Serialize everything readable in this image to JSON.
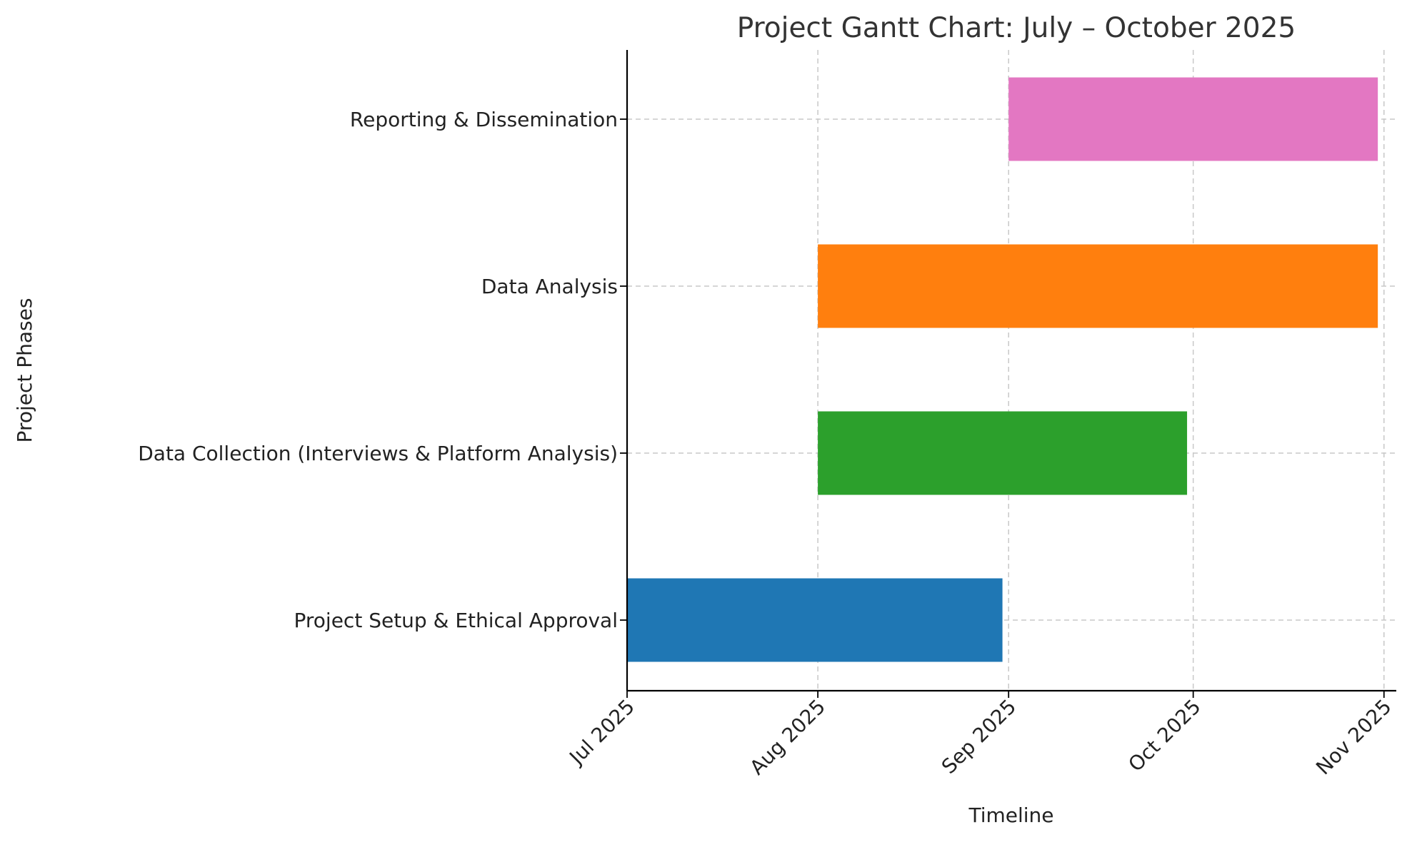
{
  "chart_data": {
    "type": "gantt",
    "title": "Project Gantt Chart: July – October 2025",
    "xlabel": "Timeline",
    "ylabel": "Project Phases",
    "x_range": [
      "2025-07-01",
      "2025-11-03"
    ],
    "x_ticks": [
      {
        "date": "2025-07-01",
        "label": "Jul 2025"
      },
      {
        "date": "2025-08-01",
        "label": "Aug 2025"
      },
      {
        "date": "2025-09-01",
        "label": "Sep 2025"
      },
      {
        "date": "2025-10-01",
        "label": "Oct 2025"
      },
      {
        "date": "2025-11-01",
        "label": "Nov 2025"
      }
    ],
    "grid": true,
    "tasks": [
      {
        "name": "Project Setup & Ethical Approval",
        "start": "2025-07-01",
        "end": "2025-08-31",
        "color": "#1f77b4"
      },
      {
        "name": "Data Collection (Interviews & Platform Analysis)",
        "start": "2025-08-01",
        "end": "2025-09-30",
        "color": "#2ca02c"
      },
      {
        "name": "Data Analysis",
        "start": "2025-08-01",
        "end": "2025-10-31",
        "color": "#ff7f0e"
      },
      {
        "name": "Reporting & Dissemination",
        "start": "2025-09-01",
        "end": "2025-10-31",
        "color": "#e377c2"
      }
    ]
  }
}
